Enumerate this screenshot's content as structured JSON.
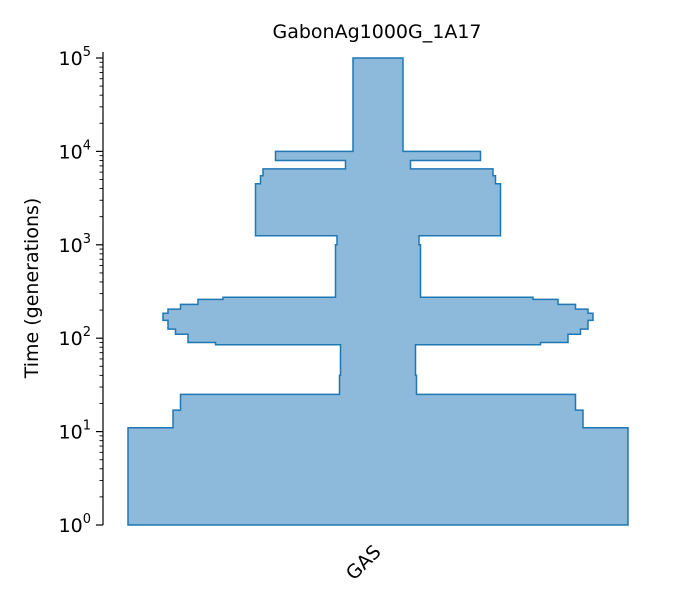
{
  "chart_data": {
    "type": "area",
    "title": "GabonAg1000G_1A17",
    "xlabel": "",
    "ylabel": "Time (generations)",
    "yscale": "log",
    "ylim": [
      1,
      100000
    ],
    "y_ticks": [
      {
        "value": 1,
        "base": "10",
        "exp": "0"
      },
      {
        "value": 10,
        "base": "10",
        "exp": "1"
      },
      {
        "value": 100,
        "base": "10",
        "exp": "2"
      },
      {
        "value": 1000,
        "base": "10",
        "exp": "3"
      },
      {
        "value": 10000,
        "base": "10",
        "exp": "4"
      },
      {
        "value": 100000,
        "base": "10",
        "exp": "5"
      }
    ],
    "categories": [
      "GAS"
    ],
    "grid": false,
    "colors": {
      "fill": "#8db9da",
      "edge": "#1f77b4",
      "axis": "#000000"
    },
    "series": [
      {
        "category": "GAS",
        "size_unit": "relative width (0-1)",
        "profile": [
          {
            "t_start": 1,
            "t_end": 11,
            "size": 1.0
          },
          {
            "t_start": 11,
            "t_end": 17,
            "size": 0.82
          },
          {
            "t_start": 17,
            "t_end": 25,
            "size": 0.79
          },
          {
            "t_start": 25,
            "t_end": 40,
            "size": 0.154
          },
          {
            "t_start": 40,
            "t_end": 85,
            "size": 0.15
          },
          {
            "t_start": 85,
            "t_end": 90,
            "size": 0.65
          },
          {
            "t_start": 90,
            "t_end": 110,
            "size": 0.76
          },
          {
            "t_start": 110,
            "t_end": 125,
            "size": 0.81
          },
          {
            "t_start": 125,
            "t_end": 155,
            "size": 0.84
          },
          {
            "t_start": 155,
            "t_end": 185,
            "size": 0.86
          },
          {
            "t_start": 185,
            "t_end": 205,
            "size": 0.84
          },
          {
            "t_start": 205,
            "t_end": 230,
            "size": 0.79
          },
          {
            "t_start": 230,
            "t_end": 260,
            "size": 0.72
          },
          {
            "t_start": 260,
            "t_end": 275,
            "size": 0.62
          },
          {
            "t_start": 275,
            "t_end": 1000,
            "size": 0.17
          },
          {
            "t_start": 1000,
            "t_end": 1250,
            "size": 0.164
          },
          {
            "t_start": 1250,
            "t_end": 4500,
            "size": 0.49
          },
          {
            "t_start": 4500,
            "t_end": 5500,
            "size": 0.47
          },
          {
            "t_start": 5500,
            "t_end": 6500,
            "size": 0.46
          },
          {
            "t_start": 6500,
            "t_end": 8000,
            "size": 0.13
          },
          {
            "t_start": 8000,
            "t_end": 10000,
            "size": 0.41
          },
          {
            "t_start": 10000,
            "t_end": 11000,
            "size": 0.1
          },
          {
            "t_start": 11000,
            "t_end": 100000,
            "size": 0.1
          }
        ]
      }
    ]
  }
}
